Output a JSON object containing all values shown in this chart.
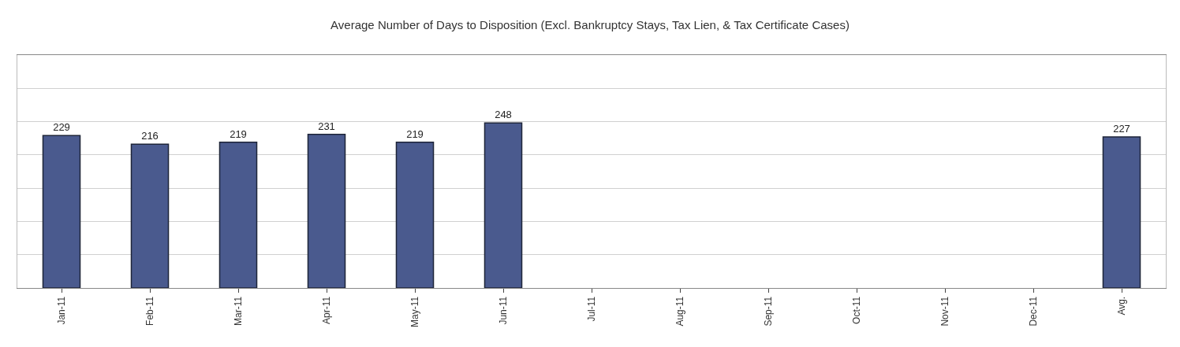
{
  "chart_data": {
    "type": "bar",
    "title": "Average Number of Days to Disposition (Excl. Bankruptcy Stays, Tax Lien, & Tax Certificate Cases)",
    "categories": [
      "Jan-11",
      "Feb-11",
      "Mar-11",
      "Apr-11",
      "May-11",
      "Jun-11",
      "Jul-11",
      "Aug-11",
      "Sep-11",
      "Oct-11",
      "Nov-11",
      "Dec-11",
      "Avg."
    ],
    "values": [
      229,
      216,
      219,
      231,
      219,
      248,
      null,
      null,
      null,
      null,
      null,
      null,
      227
    ],
    "color": "#4a5a8e",
    "ylim": [
      0,
      350
    ],
    "yticks": [
      {
        "value": 0,
        "label": null
      },
      {
        "value": 50,
        "label": null
      },
      {
        "value": 100,
        "label": null
      },
      {
        "value": 150,
        "label": null
      },
      {
        "value": 200,
        "label": null
      },
      {
        "value": 250,
        "label": null
      },
      {
        "value": 300,
        "label": null
      },
      {
        "value": 350,
        "label": null
      }
    ],
    "grid": "y",
    "data_labels": true,
    "tick_labels": "x"
  }
}
